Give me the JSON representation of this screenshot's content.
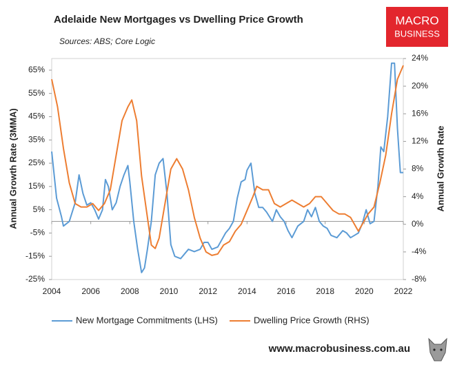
{
  "chart_data": {
    "type": "line",
    "title": "Adelaide New Mortgages vs Dwelling Price Growth",
    "subtitle": "Sources: ABS; Core Logic",
    "y_label": "Annual Growth Rate (3MMA)",
    "y2_label": "Annual Growth Rate",
    "xlim": [
      2004,
      2022
    ],
    "xticks": [
      2004,
      2006,
      2008,
      2010,
      2012,
      2014,
      2016,
      2018,
      2020,
      2022
    ],
    "ylim": [
      -25,
      70
    ],
    "yticks": [
      {
        "value": -25,
        "label": "-25%"
      },
      {
        "value": -15,
        "label": "-15%"
      },
      {
        "value": -5,
        "label": "-5%"
      },
      {
        "value": 5,
        "label": "5%"
      },
      {
        "value": 15,
        "label": "15%"
      },
      {
        "value": 25,
        "label": "25%"
      },
      {
        "value": 35,
        "label": "35%"
      },
      {
        "value": 45,
        "label": "45%"
      },
      {
        "value": 55,
        "label": "55%"
      },
      {
        "value": 65,
        "label": "65%"
      }
    ],
    "y2lim": [
      -8,
      24
    ],
    "y2ticks": [
      {
        "value": -8,
        "label": "-8%"
      },
      {
        "value": -4,
        "label": "-4%"
      },
      {
        "value": 0,
        "label": "0%"
      },
      {
        "value": 4,
        "label": "4%"
      },
      {
        "value": 8,
        "label": "8%"
      },
      {
        "value": 12,
        "label": "12%"
      },
      {
        "value": 16,
        "label": "16%"
      },
      {
        "value": 20,
        "label": "20%"
      },
      {
        "value": 24,
        "label": "24%"
      }
    ],
    "grid": false,
    "legend": "bottom",
    "series": [
      {
        "name": "New Mortgage Commitments (LHS)",
        "color": "#5b9bd5",
        "axis": "y",
        "x": [
          2004.0,
          2004.25,
          2004.5,
          2004.6,
          2004.9,
          2005.2,
          2005.4,
          2005.6,
          2005.8,
          2006.0,
          2006.2,
          2006.4,
          2006.6,
          2006.75,
          2006.9,
          2007.1,
          2007.3,
          2007.5,
          2007.7,
          2007.9,
          2008.0,
          2008.2,
          2008.4,
          2008.6,
          2008.75,
          2008.9,
          2009.1,
          2009.3,
          2009.5,
          2009.7,
          2009.9,
          2010.1,
          2010.3,
          2010.6,
          2010.8,
          2011.0,
          2011.3,
          2011.6,
          2011.8,
          2012.0,
          2012.2,
          2012.5,
          2012.7,
          2012.9,
          2013.1,
          2013.3,
          2013.5,
          2013.7,
          2013.9,
          2014.0,
          2014.2,
          2014.4,
          2014.6,
          2014.8,
          2015.0,
          2015.3,
          2015.5,
          2015.7,
          2015.9,
          2016.1,
          2016.3,
          2016.6,
          2016.9,
          2017.1,
          2017.3,
          2017.5,
          2017.7,
          2017.9,
          2018.1,
          2018.3,
          2018.6,
          2018.9,
          2019.1,
          2019.3,
          2019.5,
          2019.7,
          2019.9,
          2020.1,
          2020.3,
          2020.5,
          2020.7,
          2020.85,
          2021.0,
          2021.2,
          2021.4,
          2021.55,
          2021.7,
          2021.85,
          2022.0
        ],
        "values": [
          30,
          10,
          2,
          -2,
          0,
          8,
          20,
          12,
          7,
          8,
          5,
          1,
          5,
          18,
          15,
          5,
          8,
          15,
          20,
          24,
          17,
          0,
          -12,
          -22,
          -20,
          -12,
          0,
          20,
          25,
          27,
          12,
          -10,
          -15,
          -16,
          -14,
          -12,
          -13,
          -12,
          -9,
          -9,
          -12,
          -11,
          -8,
          -5,
          -3,
          0,
          10,
          17,
          18,
          22,
          25,
          12,
          6,
          6,
          4,
          0,
          5,
          2,
          0,
          -4,
          -7,
          -2,
          0,
          5,
          2,
          6,
          0,
          -2,
          -3,
          -6,
          -7,
          -4,
          -5,
          -7,
          -6,
          -5,
          -1,
          5,
          -1,
          0,
          15,
          32,
          30,
          45,
          68,
          68,
          40,
          21,
          21
        ]
      },
      {
        "name": "Dwelling Price Growth (RHS)",
        "color": "#ed7d31",
        "axis": "y2",
        "x": [
          2004.0,
          2004.3,
          2004.6,
          2004.9,
          2005.2,
          2005.5,
          2005.8,
          2006.1,
          2006.4,
          2006.7,
          2007.0,
          2007.3,
          2007.6,
          2007.9,
          2008.1,
          2008.35,
          2008.6,
          2008.9,
          2009.1,
          2009.3,
          2009.5,
          2009.8,
          2010.1,
          2010.4,
          2010.7,
          2011.0,
          2011.3,
          2011.6,
          2011.9,
          2012.2,
          2012.5,
          2012.8,
          2013.1,
          2013.4,
          2013.7,
          2014.0,
          2014.3,
          2014.5,
          2014.8,
          2015.1,
          2015.4,
          2015.7,
          2016.0,
          2016.3,
          2016.6,
          2016.9,
          2017.2,
          2017.5,
          2017.8,
          2018.1,
          2018.4,
          2018.7,
          2019.0,
          2019.3,
          2019.5,
          2019.7,
          2019.9,
          2020.2,
          2020.5,
          2020.8,
          2021.1,
          2021.4,
          2021.7,
          2022.0
        ],
        "values": [
          21,
          17,
          11,
          6,
          3,
          2.5,
          2.5,
          3,
          2,
          3,
          5,
          10,
          15,
          17,
          18,
          15,
          7,
          1,
          -3,
          -3.5,
          -2,
          3,
          8,
          9.5,
          8,
          5,
          1,
          -2,
          -4,
          -4.5,
          -4.3,
          -3,
          -2.5,
          -1,
          0,
          2,
          4,
          5.5,
          5,
          5,
          3,
          2.5,
          3,
          3.5,
          3,
          2.5,
          3,
          4,
          4,
          3,
          2,
          1.5,
          1.5,
          1,
          0,
          -1,
          0,
          1.5,
          2.5,
          6,
          10,
          16,
          21,
          23
        ]
      }
    ]
  },
  "branding": {
    "logo": [
      "MACRO",
      "BUSINESS"
    ],
    "website": "www.macrobusiness.com.au"
  }
}
